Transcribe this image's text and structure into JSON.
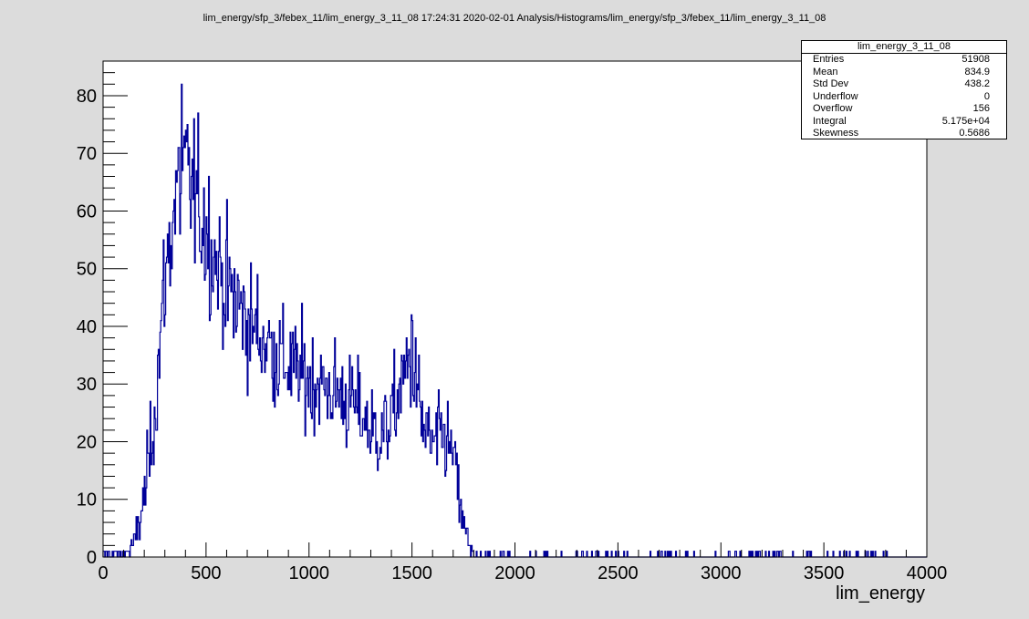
{
  "header": {
    "title": "lim_energy/sfp_3/febex_11/lim_energy_3_11_08  17:24:31  2020-02-01  Analysis/Histograms/lim_energy/sfp_3/febex_11/lim_energy_3_11_08"
  },
  "stats": {
    "title": "lim_energy_3_11_08",
    "rows": [
      {
        "label": "Entries",
        "value": "51908"
      },
      {
        "label": "Mean",
        "value": "834.9"
      },
      {
        "label": "Std Dev",
        "value": "438.2"
      },
      {
        "label": "Underflow",
        "value": "0"
      },
      {
        "label": "Overflow",
        "value": "156"
      },
      {
        "label": "Integral",
        "value": "5.175e+04"
      },
      {
        "label": "Skewness",
        "value": "0.5686"
      }
    ]
  },
  "chart_data": {
    "type": "bar",
    "style": "histogram-step",
    "title": "",
    "xlabel": "lim_energy",
    "ylabel": "",
    "xlim": [
      0,
      4000
    ],
    "ylim": [
      0,
      86
    ],
    "xticks": [
      0,
      500,
      1000,
      1500,
      2000,
      2500,
      3000,
      3500,
      4000
    ],
    "yticks": [
      0,
      10,
      20,
      30,
      40,
      50,
      60,
      70,
      80
    ],
    "grid": false,
    "legend": "none",
    "line_color": "#000099",
    "bin_width": 20,
    "approximate_profile": {
      "x": [
        0,
        100,
        150,
        200,
        250,
        300,
        350,
        400,
        450,
        500,
        550,
        600,
        650,
        700,
        750,
        800,
        850,
        900,
        950,
        1000,
        1050,
        1100,
        1150,
        1200,
        1250,
        1300,
        1350,
        1400,
        1450,
        1500,
        1550,
        1600,
        1650,
        1700,
        1750,
        1800,
        1850,
        1900,
        2000
      ],
      "y": [
        0.5,
        0.5,
        2,
        10,
        25,
        48,
        62,
        67,
        62,
        57,
        51,
        47,
        44,
        41,
        39,
        37,
        35,
        33,
        32,
        31,
        30,
        29,
        28,
        27,
        25,
        22,
        21,
        24,
        30,
        35,
        23,
        19,
        21,
        18,
        5,
        0.8,
        0.5,
        0.4,
        0.3
      ]
    },
    "peaks": [
      {
        "x": 380,
        "y": 82
      },
      {
        "x": 1495,
        "y": 42
      }
    ],
    "sparse_tail": {
      "range": [
        1800,
        3900
      ],
      "y": 1
    }
  }
}
